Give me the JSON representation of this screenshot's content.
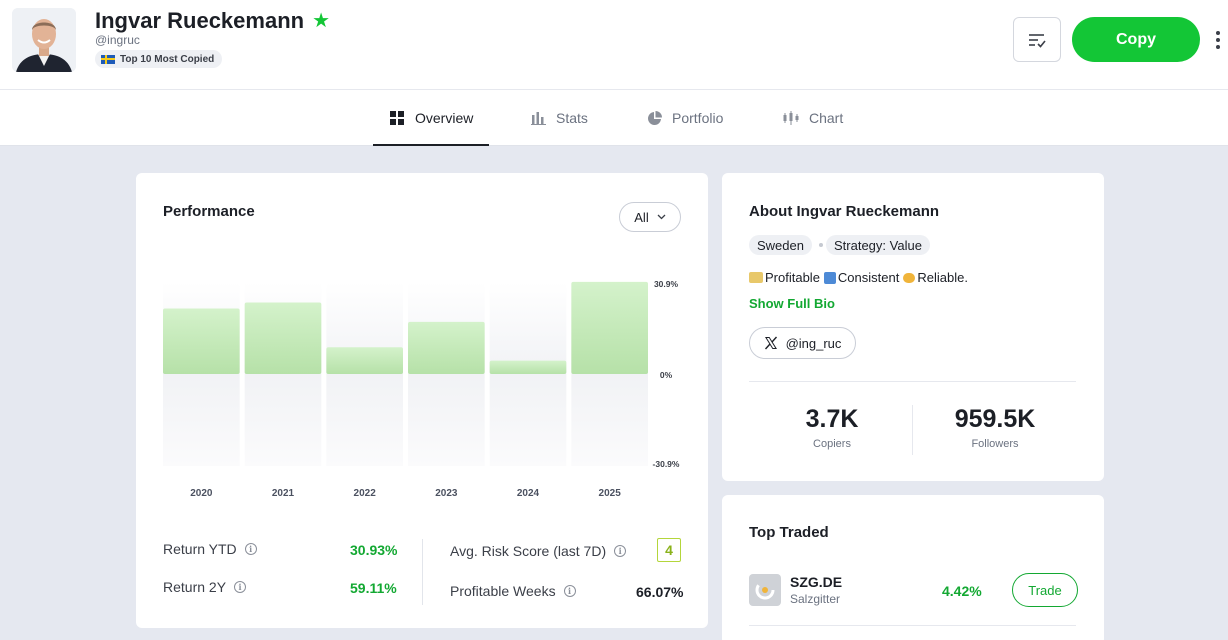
{
  "profile": {
    "name": "Ingvar Rueckemann",
    "handle": "@ingruc",
    "badge": "Top 10 Most Copied"
  },
  "header": {
    "copy_label": "Copy"
  },
  "tabs": [
    {
      "label": "Overview",
      "active": true
    },
    {
      "label": "Stats",
      "active": false
    },
    {
      "label": "Portfolio",
      "active": false
    },
    {
      "label": "Chart",
      "active": false
    }
  ],
  "performance": {
    "title": "Performance",
    "period": "All",
    "return_ytd_label": "Return YTD",
    "return_ytd_value": "30.93%",
    "return_2y_label": "Return 2Y",
    "return_2y_value": "59.11%",
    "risk_label": "Avg. Risk Score (last 7D)",
    "risk_value": "4",
    "profitable_weeks_label": "Profitable Weeks",
    "profitable_weeks_value": "66.07%"
  },
  "chart_data": {
    "type": "bar",
    "title": "Performance",
    "categories": [
      "2020",
      "2021",
      "2022",
      "2023",
      "2024",
      "2025"
    ],
    "values": [
      22,
      24,
      9,
      17.5,
      4.5,
      30.93
    ],
    "ylim": [
      -30.9,
      30.9
    ],
    "ytick_labels": [
      "30.9%",
      "0%",
      "-30.9%"
    ],
    "bar_color": "#c6ecbd",
    "bar_color_top": "#d3f1c9"
  },
  "about": {
    "title": "About Ingvar Rueckemann",
    "tags": [
      "Sweden",
      "Strategy: Value"
    ],
    "bio_parts": [
      "Profitable",
      "Consistent",
      "Reliable."
    ],
    "show_bio": "Show Full Bio",
    "x_handle": "@ing_ruc",
    "copiers_value": "3.7K",
    "copiers_label": "Copiers",
    "followers_value": "959.5K",
    "followers_label": "Followers"
  },
  "top_traded": {
    "title": "Top Traded",
    "items": [
      {
        "symbol": "SZG.DE",
        "name": "Salzgitter",
        "change": "4.42%",
        "action": "Trade"
      }
    ]
  },
  "colors": {
    "brand_green": "#13c636",
    "text_green": "#13a832",
    "risk_color": "#b4d63b"
  }
}
